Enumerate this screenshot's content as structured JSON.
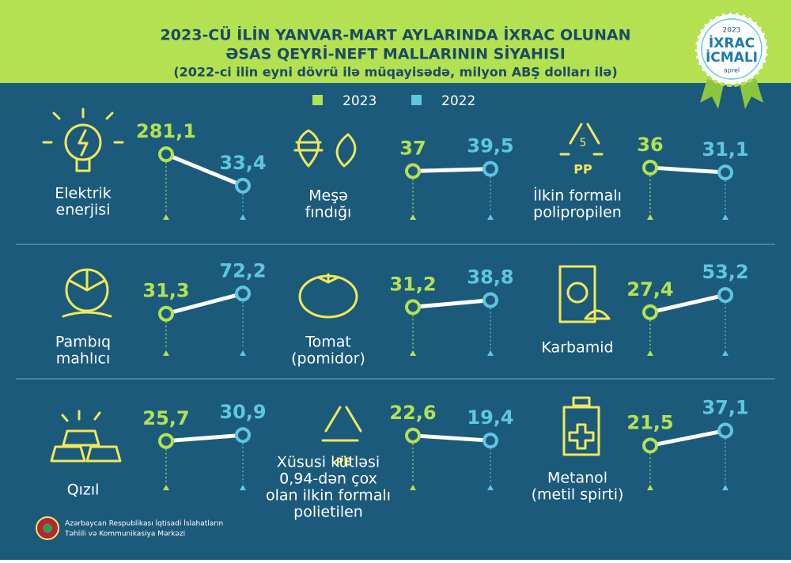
{
  "header": {
    "title": [
      "2023-CÜ İLİN YANVAR-MART AYLARINDA İXRAC OLUNAN",
      "ƏSAS QEYRİ-NEFT MALLARININ SİYAHISI"
    ],
    "subtitle": "(2022-ci ilin eyni dövrü ilə müqayisədə, milyon ABŞ dolları ilə)"
  },
  "badge": {
    "year": "2023",
    "lines": [
      "İXRAC",
      "İCMALI"
    ],
    "month": "aprel"
  },
  "legend": [
    {
      "name": "2023",
      "color": "#b3e152"
    },
    {
      "name": "2022",
      "color": "#5fc6e2"
    }
  ],
  "chart_data": [
    {
      "type": "slope",
      "title": [
        "Elektrik",
        "enerjisi"
      ],
      "values": [
        281.1,
        33.4
      ],
      "value_labels": [
        "281,1",
        "33,4"
      ]
    },
    {
      "type": "slope",
      "title": [
        "Meşə",
        "fındığı"
      ],
      "values": [
        37,
        39.5
      ],
      "value_labels": [
        "37",
        "39,5"
      ]
    },
    {
      "type": "slope",
      "title": [
        "İlkin formalı",
        "polipropilen"
      ],
      "values": [
        36,
        31.1
      ],
      "value_labels": [
        "36",
        "31,1"
      ]
    },
    {
      "type": "slope",
      "title": [
        "Pambıq",
        "mahlıcı"
      ],
      "values": [
        31.3,
        72.2
      ],
      "value_labels": [
        "31,3",
        "72,2"
      ]
    },
    {
      "type": "slope",
      "title": [
        "Tomat",
        "(pomidor)"
      ],
      "values": [
        31.2,
        38.8
      ],
      "value_labels": [
        "31,2",
        "38,8"
      ]
    },
    {
      "type": "slope",
      "title": [
        "Karbamid"
      ],
      "values": [
        27.4,
        53.2
      ],
      "value_labels": [
        "27,4",
        "53,2"
      ]
    },
    {
      "type": "slope",
      "title": [
        "Qızıl"
      ],
      "values": [
        25.7,
        30.9
      ],
      "value_labels": [
        "25,7",
        "30,9"
      ]
    },
    {
      "type": "slope",
      "title": [
        "Xüsusi kütləsi",
        "0,94-dən çox",
        "olan ilkin formalı",
        "polietilen"
      ],
      "values": [
        22.6,
        19.4
      ],
      "value_labels": [
        "22,6",
        "19,4"
      ]
    },
    {
      "type": "slope",
      "title": [
        "Metanol",
        "(metil spirti)"
      ],
      "values": [
        21.5,
        37.1
      ],
      "value_labels": [
        "21,5",
        "37,1"
      ]
    }
  ],
  "footer": [
    "Azərbaycan Respublikası İqtisadi İslahatların",
    "Təhlili və Kommunikasiya Mərkəzi"
  ]
}
